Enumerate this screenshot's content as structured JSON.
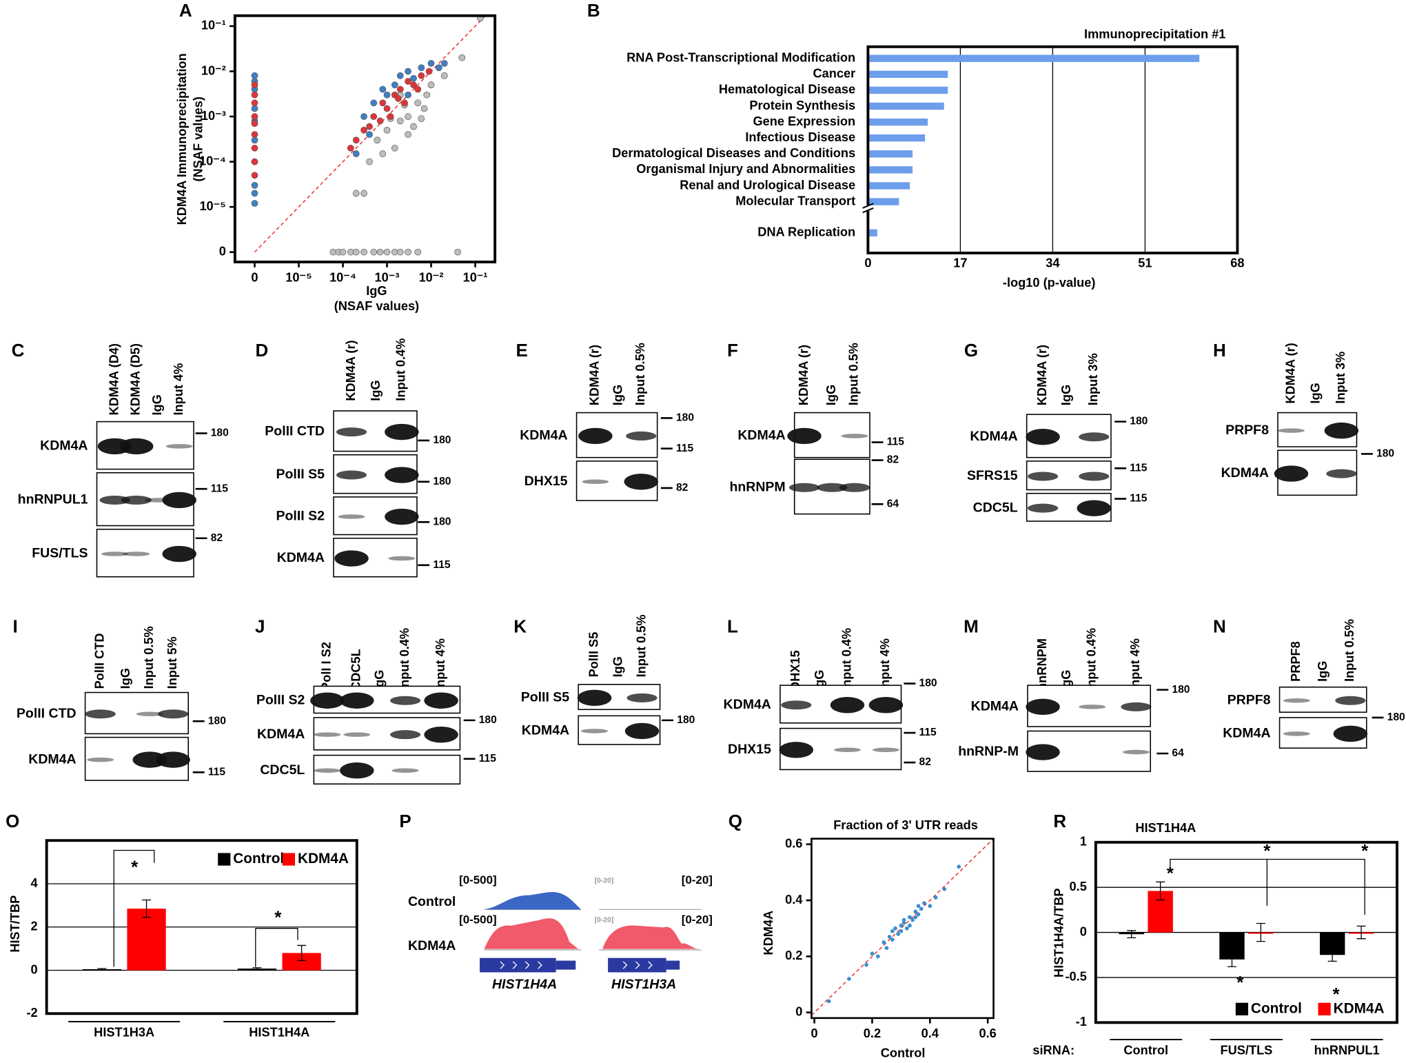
{
  "panel_labels": [
    "A",
    "B",
    "C",
    "D",
    "E",
    "F",
    "G",
    "H",
    "I",
    "J",
    "K",
    "L",
    "M",
    "N",
    "O",
    "P",
    "Q",
    "R"
  ],
  "chart_data": [
    {
      "type": "scatter",
      "log": true,
      "xlabel": [
        "IgG",
        "(NSAF values)"
      ],
      "ylabel": [
        "KDM4A Immunoprecipitation",
        "(NSAF values)"
      ],
      "xlim": [
        0,
        0.28
      ],
      "ylim": [
        0,
        0.17
      ],
      "xticks": [
        0,
        {
          "value": 1e-05,
          "label": "10⁻⁵"
        },
        {
          "value": 0.0001,
          "label": "10⁻⁴"
        },
        {
          "value": 0.001,
          "label": "10⁻³"
        },
        {
          "value": 0.01,
          "label": "10⁻²"
        },
        {
          "value": 0.1,
          "label": "10⁻¹"
        }
      ],
      "yticks": [
        0,
        {
          "value": 1e-05,
          "label": "10⁻⁵"
        },
        {
          "value": 0.0001,
          "label": "10⁻⁴"
        },
        {
          "value": 0.001,
          "label": "10⁻³"
        },
        {
          "value": 0.01,
          "label": "10⁻²"
        },
        {
          "value": 0.1,
          "label": "10⁻¹"
        }
      ],
      "series": [
        {
          "color": "#bdbdbd",
          "x": [
            0.0006,
            0.001,
            0.002,
            0.003,
            0.005,
            0.008,
            0.004,
            0.0015,
            0.0008,
            0.01,
            0.02,
            0.003,
            0.006,
            0.0004,
            0.0002,
            0.0003,
            0.13,
            0.05,
            0.002,
            0.007,
            0.0012,
            0.0025,
            6e-05,
            8e-05,
            0.0001,
            0.00015,
            0.0002,
            0.0003,
            0.0005,
            0.0007,
            0.001,
            0.0015,
            0.002,
            0.003,
            0.005,
            0.04
          ],
          "y": [
            0.0003,
            0.0005,
            0.0008,
            0.001,
            0.002,
            0.003,
            0.0006,
            0.0002,
            0.00015,
            0.005,
            0.008,
            0.0004,
            0.0009,
            0.0001,
            2e-05,
            2e-05,
            0.15,
            0.02,
            0.003,
            0.0015,
            0.0009,
            0.0018,
            0,
            0,
            0,
            0,
            0,
            0,
            0,
            0,
            0,
            0,
            0,
            0,
            0,
            0
          ]
        },
        {
          "color": "#3f7fc4",
          "x": [
            0.0003,
            0.0005,
            0.0008,
            0.001,
            0.002,
            0.003,
            0.004,
            0.006,
            0.01,
            0.015,
            0.02,
            0.0002,
            0.0004,
            0.0015,
            0.003,
            0,
            0,
            0,
            0,
            0,
            0,
            0,
            0,
            0,
            0
          ],
          "y": [
            0.001,
            0.002,
            0.004,
            0.003,
            0.008,
            0.01,
            0.007,
            0.012,
            0.015,
            0.012,
            0.015,
            0.00015,
            0.0004,
            0.005,
            0.003,
            1.2e-05,
            2e-05,
            3e-05,
            0.0001,
            0.0003,
            0.0008,
            0.0015,
            0.004,
            0.006,
            0.008
          ]
        },
        {
          "color": "#e0343a",
          "x": [
            0.0002,
            0.0003,
            0.0005,
            0.0008,
            0.001,
            0.0015,
            0.002,
            0.003,
            0.004,
            0.006,
            0.0007,
            0.0012,
            0.0025,
            0.0004,
            0.005,
            0.00015,
            0.0018,
            0.009,
            0,
            0,
            0,
            0,
            0,
            0,
            0,
            0,
            0
          ],
          "y": [
            0.0003,
            0.0005,
            0.001,
            0.002,
            0.0015,
            0.003,
            0.004,
            0.006,
            0.005,
            0.008,
            0.0008,
            0.001,
            0.002,
            0.0006,
            0.004,
            0.0002,
            0.0025,
            0.01,
            5e-05,
            0.0001,
            0.0002,
            0.0004,
            0.0007,
            0.001,
            0.002,
            0.003,
            0.005
          ]
        }
      ]
    },
    {
      "type": "bar",
      "orientation": "horizontal",
      "title": "Immunoprecipitation #1",
      "xlabel": "-log10 (p-value)",
      "categories": [
        "RNA Post-Transcriptional Modification",
        "Cancer",
        "Hematological Disease",
        "Protein Synthesis",
        "Gene Expression",
        "Infectious Disease",
        "Dermatological Diseases and Conditions",
        "Organismal Injury and Abnormalities",
        "Renal and Urological Disease",
        "Molecular Transport",
        "DNA Replication"
      ],
      "values": [
        61,
        14.7,
        14.7,
        14,
        11,
        10.5,
        8.2,
        8.2,
        7.7,
        5.7,
        1.7
      ],
      "color": "#6d9eeb",
      "xlim": [
        0,
        68
      ],
      "xticks": [
        0,
        17,
        34,
        51,
        68
      ],
      "grid": true
    },
    {
      "type": "bar",
      "ylabel": "HIST/TBP",
      "categories": [
        "HIST1H3A",
        "HIST1H4A"
      ],
      "series": [
        {
          "name": "Control",
          "color": "#000000",
          "values": [
            0.05,
            0.08
          ],
          "errors": [
            0.03,
            0.04
          ]
        },
        {
          "name": "KDM4A",
          "color": "#ff0000",
          "values": [
            2.85,
            0.8
          ],
          "errors": [
            0.4,
            0.35
          ]
        }
      ],
      "ylim": [
        -2,
        6
      ],
      "yticks": [
        -2,
        0,
        2,
        4
      ],
      "grid": true,
      "legend": "upper right",
      "annotations": [
        "*",
        "*"
      ]
    },
    {
      "type": "scatter",
      "title": "Fraction of 3' UTR reads",
      "xlabel": "Control",
      "ylabel": "KDM4A",
      "xlim": [
        -0.01,
        0.62
      ],
      "ylim": [
        -0.02,
        0.62
      ],
      "xticks": [
        0,
        0.2,
        0.4,
        0.6
      ],
      "yticks": [
        0,
        0.2,
        0.4,
        0.6
      ],
      "series": [
        {
          "color": "#3a8fd0",
          "x": [
            0.05,
            0.12,
            0.18,
            0.2,
            0.22,
            0.24,
            0.25,
            0.26,
            0.27,
            0.28,
            0.29,
            0.3,
            0.3,
            0.31,
            0.32,
            0.33,
            0.33,
            0.34,
            0.35,
            0.35,
            0.36,
            0.37,
            0.38,
            0.4,
            0.42,
            0.45,
            0.5,
            0.27,
            0.31,
            0.36
          ],
          "y": [
            0.04,
            0.12,
            0.17,
            0.21,
            0.2,
            0.25,
            0.23,
            0.27,
            0.26,
            0.3,
            0.28,
            0.29,
            0.31,
            0.32,
            0.3,
            0.34,
            0.31,
            0.33,
            0.36,
            0.34,
            0.35,
            0.37,
            0.39,
            0.38,
            0.41,
            0.44,
            0.52,
            0.29,
            0.33,
            0.38
          ]
        }
      ]
    },
    {
      "type": "bar",
      "title": "HIST1H4A",
      "ylabel": "HIST1H4A/TBP",
      "category_axis_label": "siRNA:",
      "categories": [
        "Control",
        "FUS/TLS",
        "hnRNPUL1"
      ],
      "series": [
        {
          "name": "Control",
          "color": "#000000",
          "values": [
            -0.02,
            -0.3,
            -0.25
          ],
          "errors": [
            0.04,
            0.08,
            0.07
          ]
        },
        {
          "name": "KDM4A",
          "color": "#ff0000",
          "values": [
            0.46,
            0,
            0
          ],
          "errors": [
            0.1,
            0.1,
            0.07
          ]
        }
      ],
      "ylim": [
        -1,
        1
      ],
      "yticks": [
        -1,
        -0.5,
        0,
        0.5,
        1
      ],
      "grid": true,
      "legend": "lower right",
      "annotations": [
        "*",
        "*",
        "*",
        "*",
        "*"
      ]
    }
  ],
  "blots": [
    {
      "lanes": [
        "KDM4A (D4)",
        "KDM4A (D5)",
        "IgG",
        "Input 4%"
      ],
      "rows": [
        "KDM4A",
        "hnRNPUL1",
        "FUS/TLS"
      ],
      "markers": [
        180,
        115,
        82
      ]
    },
    {
      "lanes": [
        "KDM4A (r)",
        "IgG",
        "Input 0.4%"
      ],
      "rows": [
        "PolII CTD",
        "PolII S5",
        "PolII S2",
        "KDM4A"
      ],
      "markers": [
        180,
        180,
        180,
        115
      ]
    },
    {
      "lanes": [
        "KDM4A (r)",
        "IgG",
        "Input 0.5%"
      ],
      "rows": [
        "KDM4A",
        "DHX15"
      ],
      "markers": [
        180,
        115,
        82
      ]
    },
    {
      "lanes": [
        "KDM4A (r)",
        "IgG",
        "Input 0.5%"
      ],
      "rows": [
        "KDM4A",
        "hnRNPM"
      ],
      "markers": [
        115,
        82,
        64
      ]
    },
    {
      "lanes": [
        "KDM4A (r)",
        "IgG",
        "Input 3%"
      ],
      "rows": [
        "KDM4A",
        "SFRS15",
        "CDC5L"
      ],
      "markers": [
        180,
        115,
        115
      ]
    },
    {
      "lanes": [
        "KDM4A (r)",
        "IgG",
        "Input 3%"
      ],
      "rows": [
        "PRPF8",
        "KDM4A"
      ],
      "markers": [
        180
      ]
    },
    {
      "lanes": [
        "PolII CTD",
        "IgG",
        "Input 0.5%",
        "Input 5%"
      ],
      "rows": [
        "PolII CTD",
        "KDM4A"
      ],
      "markers": [
        180,
        115
      ]
    },
    {
      "lanes": [
        "PolI I S2",
        "CDC5L",
        "IgG",
        "Input 0.4%",
        "Input 4%"
      ],
      "rows": [
        "PolII S2",
        "KDM4A",
        "CDC5L"
      ],
      "markers": [
        180,
        115
      ]
    },
    {
      "lanes": [
        "PolII S5",
        "IgG",
        "Input 0.5%"
      ],
      "rows": [
        "PolII S5",
        "KDM4A"
      ],
      "markers": [
        180
      ]
    },
    {
      "lanes": [
        "DHX15",
        "IgG",
        "Input 0.4%",
        "Input 4%"
      ],
      "rows": [
        "KDM4A",
        "DHX15"
      ],
      "markers": [
        180,
        115,
        82
      ]
    },
    {
      "lanes": [
        "hnRNPM",
        "IgG",
        "Input 0.4%",
        "Input 4%"
      ],
      "rows": [
        "KDM4A",
        "hnRNP-M"
      ],
      "markers": [
        180,
        64
      ]
    },
    {
      "lanes": [
        "PRPF8",
        "IgG",
        "Input 0.5%"
      ],
      "rows": [
        "PRPF8",
        "KDM4A"
      ],
      "markers": [
        180
      ]
    }
  ],
  "tracks": {
    "samples": [
      "Control",
      "KDM4A"
    ],
    "ranges": [
      "[0-500]",
      "[0-20]",
      "[0-20]",
      "[0-500]",
      "[0-20]",
      "[0-20]"
    ],
    "genes": [
      "HIST1H4A",
      "HIST1H3A"
    ]
  }
}
